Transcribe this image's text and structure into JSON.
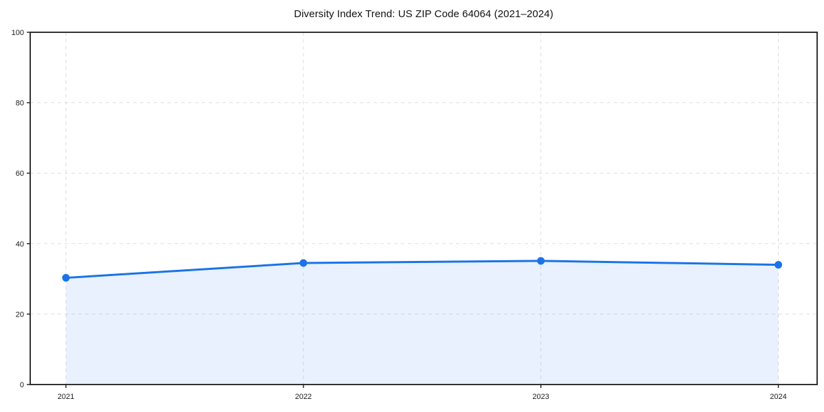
{
  "chart_data": {
    "type": "area",
    "title": "Diversity Index Trend: US ZIP Code 64064 (2021–2024)",
    "x": [
      2021,
      2022,
      2023,
      2024
    ],
    "x_tick_labels": [
      "2021",
      "2022",
      "2023",
      "2024"
    ],
    "series": [
      {
        "name": "Diversity Index",
        "values": [
          30.3,
          34.5,
          35.1,
          34.0
        ]
      }
    ],
    "ylim": [
      0,
      100
    ],
    "y_ticks": [
      0,
      20,
      40,
      60,
      80,
      100
    ],
    "y_tick_labels": [
      "0",
      "20",
      "40",
      "60",
      "80",
      "100"
    ],
    "xlabel": "",
    "ylabel": "",
    "legend": "none",
    "grid": "dashed",
    "colors": {
      "line": "#1a73e8",
      "marker": "#1a73e8",
      "area_fill": "rgba(26,115,232,0.10)",
      "gridline": "#dedede",
      "axis": "#1c1c1c",
      "tick_label": "#1a1a1a",
      "plot_background": "#ffffff"
    }
  }
}
